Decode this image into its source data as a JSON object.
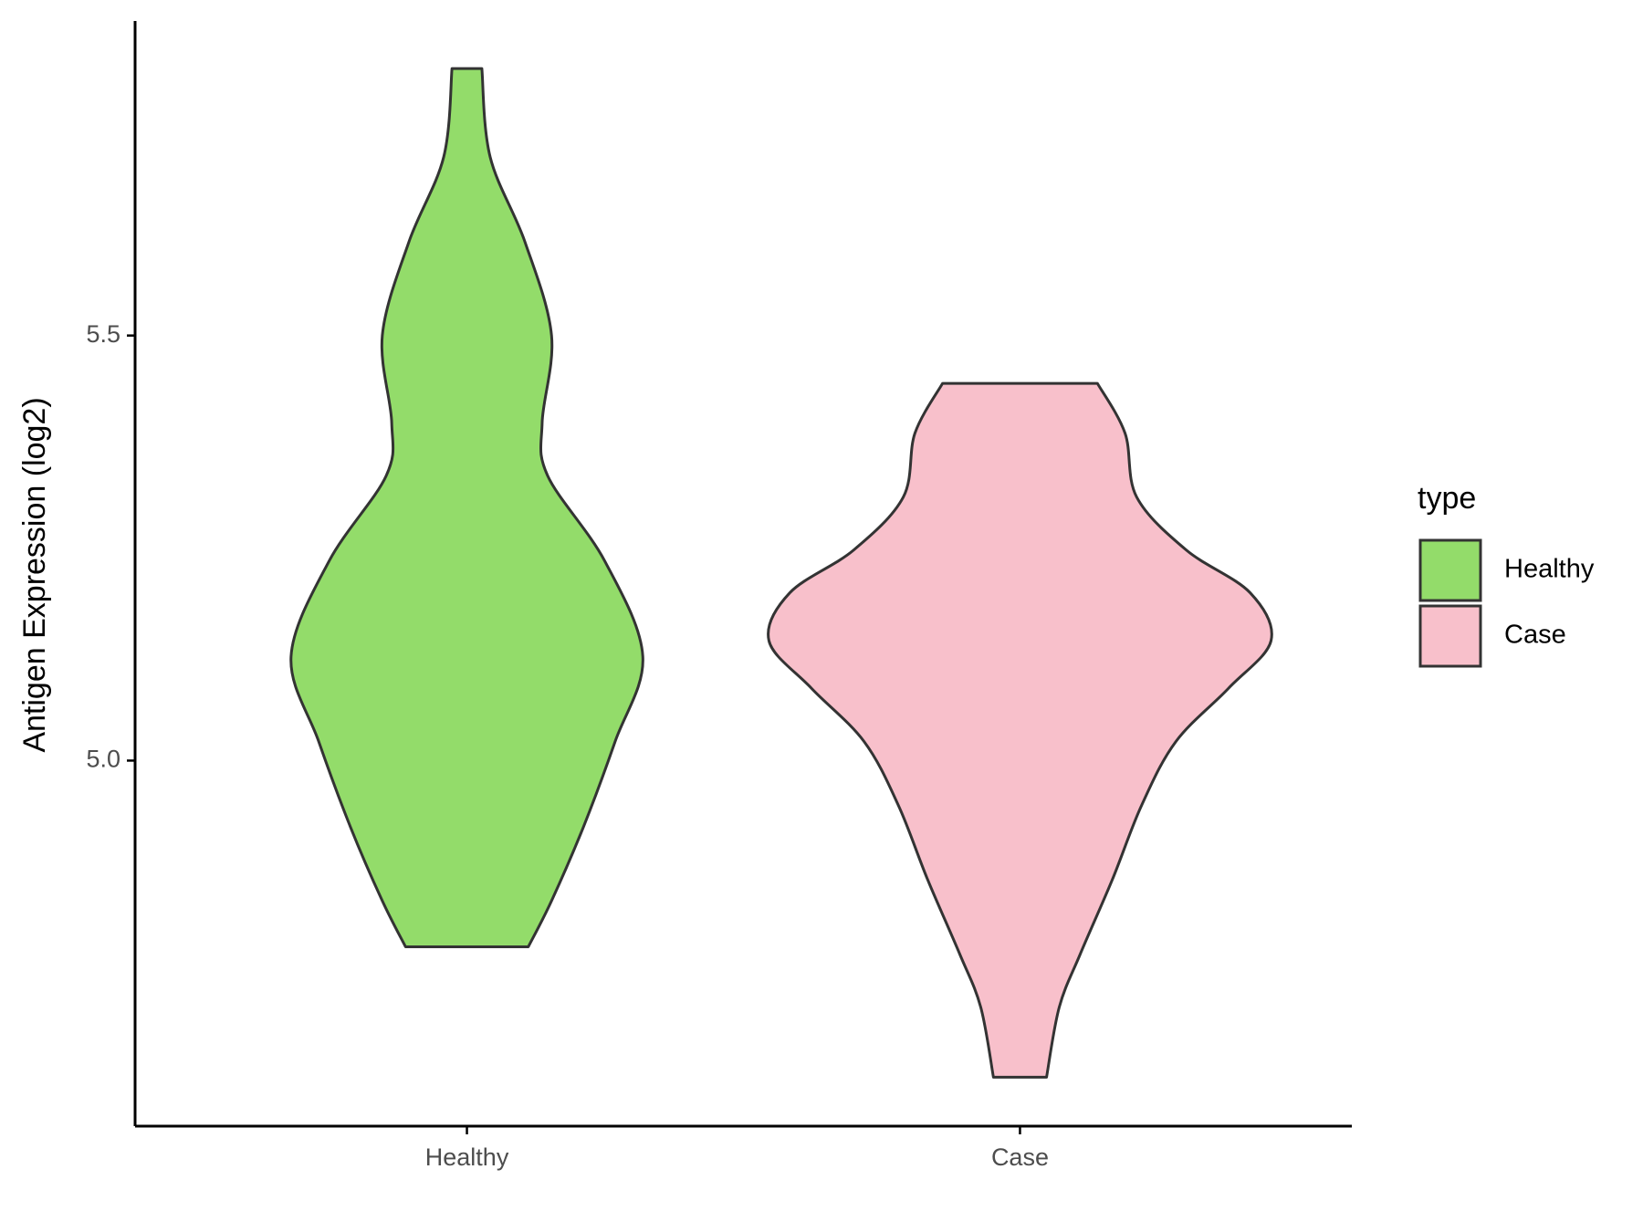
{
  "chart_data": {
    "type": "violin",
    "y_label": "Antigen Expression (log2)",
    "categories": [
      "Healthy",
      "Case"
    ],
    "legend_title": "type",
    "legend_position": "right",
    "ylim": [
      4.57,
      5.87
    ],
    "yticks": [
      {
        "value": 5,
        "label": "5.0"
      },
      5.5
    ],
    "grid": false,
    "series": [
      {
        "name": "Healthy",
        "color": "#93dc6a",
        "y": [
          5.814,
          5.71,
          5.61,
          5.5,
          5.3975,
          5.335,
          5.235,
          5.1225,
          5.0225,
          4.9225,
          4.835,
          4.781
        ],
        "half_width": [
          0.027,
          0.042,
          0.105,
          0.153,
          0.136,
          0.146,
          0.249,
          0.318,
          0.268,
          0.211,
          0.153,
          0.111
        ]
      },
      {
        "name": "Case",
        "color": "#f8c0cb",
        "y": [
          5.44375,
          5.385,
          5.31,
          5.2475,
          5.1975,
          5.14125,
          5.085,
          5.0225,
          4.9475,
          4.86,
          4.7725,
          4.71,
          4.6275
        ],
        "half_width": [
          0.14,
          0.19,
          0.211,
          0.301,
          0.416,
          0.454,
          0.377,
          0.282,
          0.22,
          0.167,
          0.109,
          0.071,
          0.048
        ]
      }
    ]
  }
}
